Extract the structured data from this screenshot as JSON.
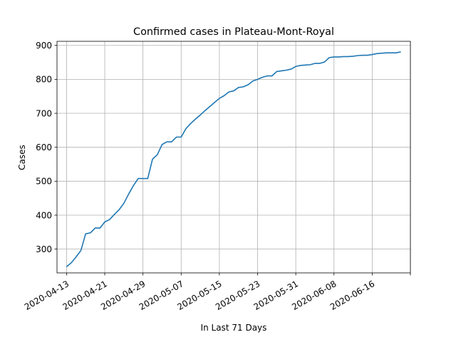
{
  "chart_data": {
    "type": "line",
    "title": "Confirmed cases in Plateau-Mont-Royal",
    "xlabel": "In Last 71 Days",
    "ylabel": "Cases",
    "grid": true,
    "line_color": "#1f77b4",
    "xlim": [
      "2020-04-11",
      "2020-06-24"
    ],
    "ylim": [
      230,
      912
    ],
    "x_ticks": [
      "2020-04-13",
      "2020-04-21",
      "2020-04-29",
      "2020-05-07",
      "2020-05-15",
      "2020-05-23",
      "2020-05-31",
      "2020-06-08",
      "2020-06-16"
    ],
    "x_tick_extra": [
      "2020-06-24"
    ],
    "y_ticks": [
      300,
      400,
      500,
      600,
      700,
      800,
      900
    ],
    "series": [
      {
        "x": [
          "2020-04-13",
          "2020-04-14",
          "2020-04-15",
          "2020-04-16",
          "2020-04-17",
          "2020-04-18",
          "2020-04-19",
          "2020-04-20",
          "2020-04-21",
          "2020-04-22",
          "2020-04-23",
          "2020-04-24",
          "2020-04-25",
          "2020-04-26",
          "2020-04-27",
          "2020-04-28",
          "2020-04-29",
          "2020-04-30",
          "2020-05-01",
          "2020-05-02",
          "2020-05-03",
          "2020-05-04",
          "2020-05-05",
          "2020-05-06",
          "2020-05-07",
          "2020-05-08",
          "2020-05-09",
          "2020-05-10",
          "2020-05-11",
          "2020-05-12",
          "2020-05-13",
          "2020-05-14",
          "2020-05-15",
          "2020-05-16",
          "2020-05-17",
          "2020-05-18",
          "2020-05-19",
          "2020-05-20",
          "2020-05-21",
          "2020-05-22",
          "2020-05-23",
          "2020-05-24",
          "2020-05-25",
          "2020-05-26",
          "2020-05-27",
          "2020-05-28",
          "2020-05-29",
          "2020-05-30",
          "2020-05-31",
          "2020-06-01",
          "2020-06-02",
          "2020-06-03",
          "2020-06-04",
          "2020-06-05",
          "2020-06-06",
          "2020-06-07",
          "2020-06-08",
          "2020-06-09",
          "2020-06-10",
          "2020-06-11",
          "2020-06-12",
          "2020-06-13",
          "2020-06-14",
          "2020-06-15",
          "2020-06-16",
          "2020-06-17",
          "2020-06-18",
          "2020-06-19",
          "2020-06-20",
          "2020-06-21",
          "2020-06-22"
        ],
        "values": [
          248,
          260,
          277,
          296,
          345,
          348,
          362,
          362,
          380,
          387,
          402,
          416,
          435,
          462,
          487,
          508,
          508,
          508,
          565,
          578,
          608,
          616,
          616,
          630,
          630,
          655,
          670,
          683,
          695,
          708,
          720,
          732,
          744,
          752,
          763,
          766,
          776,
          778,
          784,
          795,
          800,
          806,
          810,
          810,
          823,
          825,
          827,
          830,
          838,
          841,
          842,
          843,
          847,
          847,
          851,
          864,
          866,
          866,
          867,
          867,
          868,
          870,
          871,
          871,
          873,
          876,
          877,
          878,
          878,
          878,
          881
        ]
      }
    ]
  }
}
